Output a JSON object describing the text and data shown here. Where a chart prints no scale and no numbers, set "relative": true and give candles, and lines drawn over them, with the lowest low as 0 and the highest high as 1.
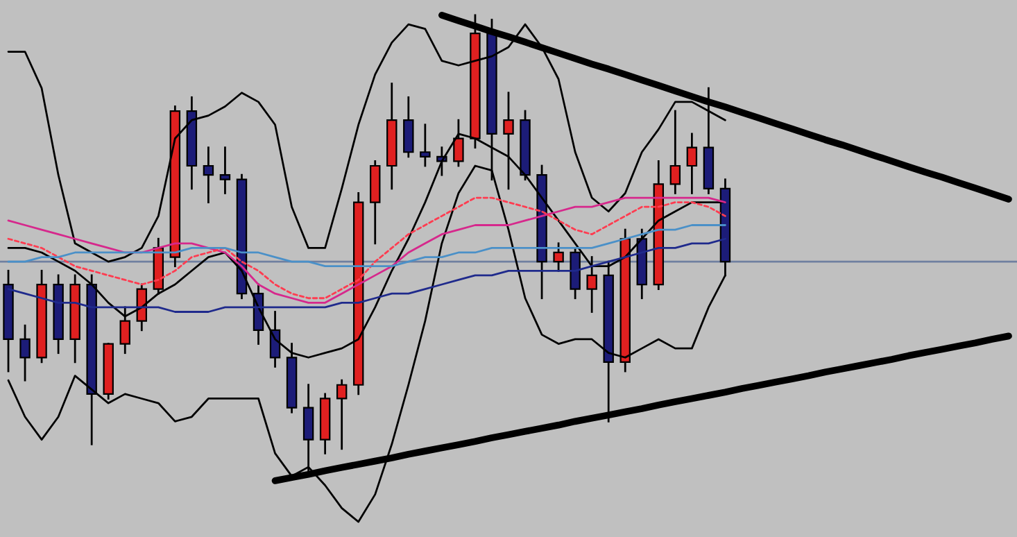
{
  "chart_data": {
    "type": "candlestick",
    "relative": true,
    "tick_labels": false,
    "categories": [
      null,
      null,
      null,
      null,
      null,
      null,
      null,
      null,
      null,
      null,
      null,
      null,
      null,
      null,
      null,
      null,
      null,
      null,
      null,
      null,
      null,
      null,
      null,
      null,
      null,
      null,
      null,
      null,
      null,
      null,
      null,
      null,
      null,
      null,
      null,
      null,
      null,
      null,
      null,
      null,
      null,
      null,
      null,
      null,
      null,
      null,
      null,
      null,
      null,
      null,
      null,
      null,
      null,
      null,
      null,
      null,
      null,
      null,
      null,
      null,
      null
    ],
    "ohlc": [
      [
        0.41,
        0.44,
        0.22,
        0.29
      ],
      [
        0.29,
        0.32,
        0.2,
        0.25
      ],
      [
        0.25,
        0.44,
        0.24,
        0.41
      ],
      [
        0.41,
        0.43,
        0.26,
        0.29
      ],
      [
        0.29,
        0.43,
        0.24,
        0.41
      ],
      [
        0.41,
        0.43,
        0.06,
        0.17
      ],
      [
        0.17,
        0.28,
        0.16,
        0.28
      ],
      [
        0.28,
        0.36,
        0.26,
        0.33
      ],
      [
        0.33,
        0.41,
        0.31,
        0.4
      ],
      [
        0.4,
        0.51,
        0.39,
        0.49
      ],
      [
        0.47,
        0.8,
        0.45,
        0.79
      ],
      [
        0.79,
        0.82,
        0.62,
        0.67
      ],
      [
        0.67,
        0.71,
        0.59,
        0.65
      ],
      [
        0.65,
        0.71,
        0.61,
        0.64
      ],
      [
        0.64,
        0.65,
        0.38,
        0.39
      ],
      [
        0.39,
        0.41,
        0.28,
        0.31
      ],
      [
        0.31,
        0.35,
        0.23,
        0.25
      ],
      [
        0.25,
        0.28,
        0.13,
        0.14
      ],
      [
        0.14,
        0.19,
        0.0,
        0.07
      ],
      [
        0.07,
        0.17,
        0.04,
        0.16
      ],
      [
        0.16,
        0.2,
        0.05,
        0.19
      ],
      [
        0.19,
        0.61,
        0.17,
        0.59
      ],
      [
        0.59,
        0.68,
        0.5,
        0.67
      ],
      [
        0.67,
        0.85,
        0.62,
        0.77
      ],
      [
        0.77,
        0.82,
        0.69,
        0.7
      ],
      [
        0.7,
        0.76,
        0.67,
        0.69
      ],
      [
        0.69,
        0.71,
        0.65,
        0.68
      ],
      [
        0.68,
        0.77,
        0.67,
        0.73
      ],
      [
        0.73,
        1.0,
        0.71,
        0.96
      ],
      [
        0.96,
        0.99,
        0.64,
        0.74
      ],
      [
        0.74,
        0.83,
        0.62,
        0.77
      ],
      [
        0.77,
        0.79,
        0.64,
        0.65
      ],
      [
        0.65,
        0.67,
        0.38,
        0.46
      ],
      [
        0.46,
        0.5,
        0.44,
        0.48
      ],
      [
        0.48,
        0.49,
        0.38,
        0.4
      ],
      [
        0.4,
        0.47,
        0.35,
        0.43
      ],
      [
        0.43,
        0.46,
        0.11,
        0.24
      ],
      [
        0.24,
        0.53,
        0.22,
        0.51
      ],
      [
        0.51,
        0.53,
        0.38,
        0.41
      ],
      [
        0.41,
        0.68,
        0.4,
        0.63
      ],
      [
        0.63,
        0.79,
        0.61,
        0.67
      ],
      [
        0.67,
        0.74,
        0.61,
        0.71
      ],
      [
        0.71,
        0.84,
        0.61,
        0.62
      ],
      [
        0.62,
        0.64,
        0.43,
        0.46
      ],
      null,
      null,
      null,
      null,
      null,
      null,
      null,
      null,
      null,
      null,
      null,
      null,
      null,
      null,
      null,
      null,
      null
    ],
    "colors": [
      "#1c1c78",
      "#1c1c78",
      "#e02020",
      "#1c1c78",
      "#e02020",
      "#1c1c78",
      "#e02020",
      "#e02020",
      "#e02020",
      "#e02020",
      "#e02020",
      "#1c1c78",
      "#1c1c78",
      "#1c1c78",
      "#1c1c78",
      "#1c1c78",
      "#1c1c78",
      "#1c1c78",
      "#1c1c78",
      "#e02020",
      "#e02020",
      "#e02020",
      "#e02020",
      "#e02020",
      "#1c1c78",
      "#1c1c78",
      "#1c1c78",
      "#e02020",
      "#e02020",
      "#1c1c78",
      "#e02020",
      "#1c1c78",
      "#1c1c78",
      "#e02020",
      "#1c1c78",
      "#e02020",
      "#1c1c78",
      "#e02020",
      "#1c1c78",
      "#e02020",
      "#e02020",
      "#e02020",
      "#1c1c78",
      "#1c1c78",
      null,
      null,
      null,
      null,
      null,
      null,
      null,
      null,
      null,
      null,
      null,
      null,
      null,
      null,
      null,
      null,
      null
    ],
    "ref_lines": [
      {
        "axis": "y",
        "value": 0.46,
        "color": "#7080a0",
        "line_style": "solid"
      }
    ],
    "series": [
      {
        "type": "line",
        "color": "#000000",
        "line_style": "solid",
        "values": [
          0.92,
          0.92,
          0.84,
          0.65,
          0.5,
          0.48,
          0.46,
          0.47,
          0.49,
          0.56,
          0.73,
          0.77,
          0.78,
          0.8,
          0.83,
          0.81,
          0.76,
          0.58,
          0.49,
          0.49,
          0.62,
          0.76,
          0.87,
          0.94,
          0.98,
          0.97,
          0.9,
          0.89,
          0.9,
          0.91,
          0.93,
          0.98,
          0.93,
          0.86,
          0.7,
          0.6,
          0.57,
          0.61,
          0.7,
          0.75,
          0.81,
          0.81,
          0.79,
          0.77,
          null,
          null,
          null,
          null,
          null,
          null,
          null,
          null,
          null,
          null,
          null,
          null,
          null,
          null,
          null,
          null,
          null
        ]
      },
      {
        "type": "line",
        "color": "#000000",
        "line_style": "solid",
        "values": [
          0.2,
          0.12,
          0.07,
          0.12,
          0.21,
          0.18,
          0.15,
          0.17,
          0.16,
          0.15,
          0.11,
          0.12,
          0.16,
          0.16,
          0.16,
          0.16,
          0.04,
          -0.01,
          0.01,
          -0.03,
          -0.08,
          -0.11,
          -0.05,
          0.06,
          0.19,
          0.33,
          0.5,
          0.61,
          0.67,
          0.66,
          0.53,
          0.38,
          0.3,
          0.28,
          0.29,
          0.29,
          0.26,
          0.25,
          0.27,
          0.29,
          0.27,
          0.27,
          0.36,
          0.43,
          null,
          null,
          null,
          null,
          null,
          null,
          null,
          null,
          null,
          null,
          null,
          null,
          null,
          null,
          null,
          null,
          null
        ]
      },
      {
        "type": "line",
        "color": "#000000",
        "line_style": "solid",
        "values": [
          0.49,
          0.49,
          0.48,
          0.46,
          0.44,
          0.41,
          0.37,
          0.34,
          0.36,
          0.39,
          0.41,
          0.44,
          0.47,
          0.48,
          0.44,
          0.36,
          0.29,
          0.26,
          0.25,
          0.26,
          0.27,
          0.29,
          0.36,
          0.44,
          0.51,
          0.59,
          0.68,
          0.74,
          0.73,
          0.71,
          0.69,
          0.65,
          0.6,
          0.55,
          0.5,
          0.45,
          0.45,
          0.47,
          0.51,
          0.55,
          0.57,
          0.59,
          0.59,
          0.59,
          null,
          null,
          null,
          null,
          null,
          null,
          null,
          null,
          null,
          null,
          null,
          null,
          null,
          null,
          null,
          null,
          null
        ]
      },
      {
        "type": "line",
        "color": "#d6288c",
        "line_style": "solid",
        "values": [
          0.55,
          0.54,
          0.53,
          0.52,
          0.51,
          0.5,
          0.49,
          0.48,
          0.48,
          0.49,
          0.5,
          0.5,
          0.49,
          0.48,
          0.45,
          0.41,
          0.39,
          0.38,
          0.37,
          0.37,
          0.39,
          0.41,
          0.43,
          0.45,
          0.48,
          0.5,
          0.52,
          0.53,
          0.54,
          0.54,
          0.54,
          0.55,
          0.56,
          0.57,
          0.58,
          0.58,
          0.59,
          0.6,
          0.6,
          0.6,
          0.6,
          0.6,
          0.6,
          0.59,
          null,
          null,
          null,
          null,
          null,
          null,
          null,
          null,
          null,
          null,
          null,
          null,
          null,
          null,
          null,
          null,
          null
        ]
      },
      {
        "type": "line",
        "color": "#ff3c50",
        "line_style": "dashed",
        "values": [
          0.51,
          0.5,
          0.49,
          0.47,
          0.45,
          0.44,
          0.43,
          0.42,
          0.41,
          0.42,
          0.44,
          0.47,
          0.48,
          0.49,
          0.46,
          0.44,
          0.41,
          0.39,
          0.38,
          0.38,
          0.4,
          0.42,
          0.46,
          0.49,
          0.52,
          0.54,
          0.56,
          0.58,
          0.6,
          0.6,
          0.59,
          0.58,
          0.57,
          0.55,
          0.53,
          0.52,
          0.54,
          0.56,
          0.58,
          0.58,
          0.59,
          0.59,
          0.58,
          0.56,
          null,
          null,
          null,
          null,
          null,
          null,
          null,
          null,
          null,
          null,
          null,
          null,
          null,
          null,
          null,
          null,
          null
        ]
      },
      {
        "type": "line",
        "color": "#4a90c8",
        "line_style": "solid",
        "values": [
          0.46,
          0.46,
          0.47,
          0.47,
          0.48,
          0.48,
          0.48,
          0.48,
          0.48,
          0.48,
          0.48,
          0.49,
          0.49,
          0.49,
          0.48,
          0.48,
          0.47,
          0.46,
          0.46,
          0.45,
          0.45,
          0.45,
          0.45,
          0.45,
          0.46,
          0.47,
          0.47,
          0.48,
          0.48,
          0.49,
          0.49,
          0.49,
          0.49,
          0.49,
          0.49,
          0.49,
          0.5,
          0.51,
          0.52,
          0.53,
          0.53,
          0.54,
          0.54,
          0.54,
          null,
          null,
          null,
          null,
          null,
          null,
          null,
          null,
          null,
          null,
          null,
          null,
          null,
          null,
          null,
          null,
          null
        ]
      },
      {
        "type": "line",
        "color": "#1f2a8c",
        "line_style": "solid",
        "values": [
          0.4,
          0.39,
          0.38,
          0.37,
          0.37,
          0.36,
          0.36,
          0.36,
          0.36,
          0.36,
          0.35,
          0.35,
          0.35,
          0.36,
          0.36,
          0.36,
          0.36,
          0.36,
          0.36,
          0.36,
          0.37,
          0.37,
          0.38,
          0.39,
          0.39,
          0.4,
          0.41,
          0.42,
          0.43,
          0.43,
          0.44,
          0.44,
          0.44,
          0.44,
          0.44,
          0.45,
          0.46,
          0.47,
          0.48,
          0.49,
          0.49,
          0.5,
          0.5,
          0.51,
          null,
          null,
          null,
          null,
          null,
          null,
          null,
          null,
          null,
          null,
          null,
          null,
          null,
          null,
          null,
          null,
          null
        ]
      },
      {
        "type": "line",
        "color": "#000000",
        "line_style": "solid",
        "values": [
          null,
          null,
          null,
          null,
          null,
          null,
          null,
          null,
          null,
          null,
          null,
          null,
          null,
          null,
          null,
          null,
          null,
          null,
          null,
          null,
          null,
          null,
          null,
          null,
          null,
          null,
          1.0,
          0.988,
          0.976,
          0.964,
          0.953,
          0.941,
          0.929,
          0.917,
          0.905,
          0.893,
          0.882,
          0.87,
          0.858,
          0.846,
          0.834,
          0.822,
          0.81,
          0.799,
          0.787,
          0.775,
          0.763,
          0.751,
          0.739,
          0.727,
          0.716,
          0.704,
          0.692,
          0.68,
          0.668,
          0.656,
          0.645,
          0.633,
          0.621,
          0.609,
          0.597
        ]
      },
      {
        "type": "line",
        "color": "#000000",
        "line_style": "solid",
        "values": [
          null,
          null,
          null,
          null,
          null,
          null,
          null,
          null,
          null,
          null,
          null,
          null,
          null,
          null,
          null,
          null,
          -0.02,
          -0.013,
          -0.006,
          0.002,
          0.009,
          0.016,
          0.023,
          0.03,
          0.038,
          0.045,
          0.052,
          0.059,
          0.066,
          0.074,
          0.081,
          0.088,
          0.095,
          0.102,
          0.11,
          0.117,
          0.124,
          0.131,
          0.138,
          0.146,
          0.153,
          0.16,
          0.167,
          0.174,
          0.182,
          0.189,
          0.196,
          0.203,
          0.21,
          0.218,
          0.225,
          0.232,
          0.239,
          0.246,
          0.254,
          0.261,
          0.268,
          0.275,
          0.282,
          0.29,
          0.297
        ]
      }
    ]
  }
}
